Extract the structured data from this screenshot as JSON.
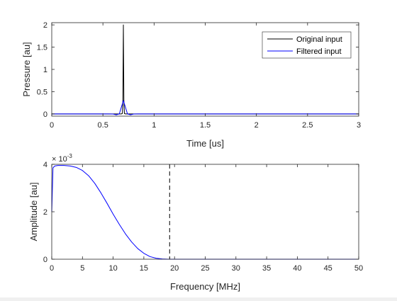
{
  "chart_data": [
    {
      "type": "line",
      "xlabel": "Time [us]",
      "ylabel": "Pressure [au]",
      "xlim": [
        0,
        3
      ],
      "ylim": [
        -0.05,
        2.05
      ],
      "xticks": [
        0,
        0.5,
        1,
        1.5,
        2,
        2.5,
        3
      ],
      "xtick_labels": [
        "0",
        "0.5",
        "1",
        "1.5",
        "2",
        "2.5",
        "3"
      ],
      "yticks": [
        0,
        0.5,
        1,
        1.5,
        2
      ],
      "ytick_labels": [
        "0",
        "0.5",
        "1",
        "1.5",
        "2"
      ],
      "grid": false,
      "legend_position": "top-right",
      "series": [
        {
          "name": "Original input",
          "color": "#000000",
          "x": [
            0,
            0.68,
            0.69,
            0.695,
            0.7,
            0.705,
            0.71,
            0.72,
            3.0
          ],
          "y": [
            0,
            0,
            0.01,
            0.3,
            2.0,
            0.3,
            0.01,
            0,
            0
          ]
        },
        {
          "name": "Filtered input",
          "color": "#0000ff",
          "x": [
            0,
            0.55,
            0.6,
            0.63,
            0.66,
            0.68,
            0.7,
            0.72,
            0.74,
            0.77,
            0.8,
            0.85,
            3.0
          ],
          "y": [
            0,
            0,
            -0.003,
            -0.02,
            0.0,
            0.15,
            0.3,
            0.15,
            0.0,
            -0.02,
            -0.003,
            0,
            0
          ]
        }
      ]
    },
    {
      "type": "line",
      "xlabel": "Frequency [MHz]",
      "ylabel": "Amplitude [au]",
      "exponent_label": "× 10",
      "exponent_power": "-3",
      "xlim": [
        0,
        50
      ],
      "ylim": [
        0,
        4
      ],
      "xticks": [
        0,
        5,
        10,
        15,
        20,
        25,
        30,
        35,
        40,
        45,
        50
      ],
      "xtick_labels": [
        "0",
        "5",
        "10",
        "15",
        "20",
        "25",
        "30",
        "35",
        "40",
        "45",
        "50"
      ],
      "yticks": [
        0,
        2,
        4
      ],
      "ytick_labels": [
        "0",
        "2",
        "4"
      ],
      "grid": false,
      "series": [
        {
          "color": "#0000ff",
          "x": [
            0,
            0.2,
            0.5,
            1,
            2,
            3,
            4,
            5,
            6,
            7,
            8,
            9,
            10,
            11,
            12,
            13,
            14,
            15,
            16,
            17,
            18,
            19,
            20,
            25,
            30,
            35,
            40,
            45,
            50
          ],
          "y": [
            2.0,
            3.85,
            3.93,
            3.95,
            3.95,
            3.93,
            3.87,
            3.74,
            3.52,
            3.2,
            2.8,
            2.36,
            1.9,
            1.47,
            1.07,
            0.73,
            0.45,
            0.25,
            0.11,
            0.04,
            0.01,
            0.0,
            0.0,
            0.0,
            0.0,
            0.0,
            0.0,
            0.0,
            0.0
          ]
        }
      ],
      "reference_line": {
        "x": 19.2,
        "style": "dashed",
        "color": "#000000"
      }
    }
  ]
}
